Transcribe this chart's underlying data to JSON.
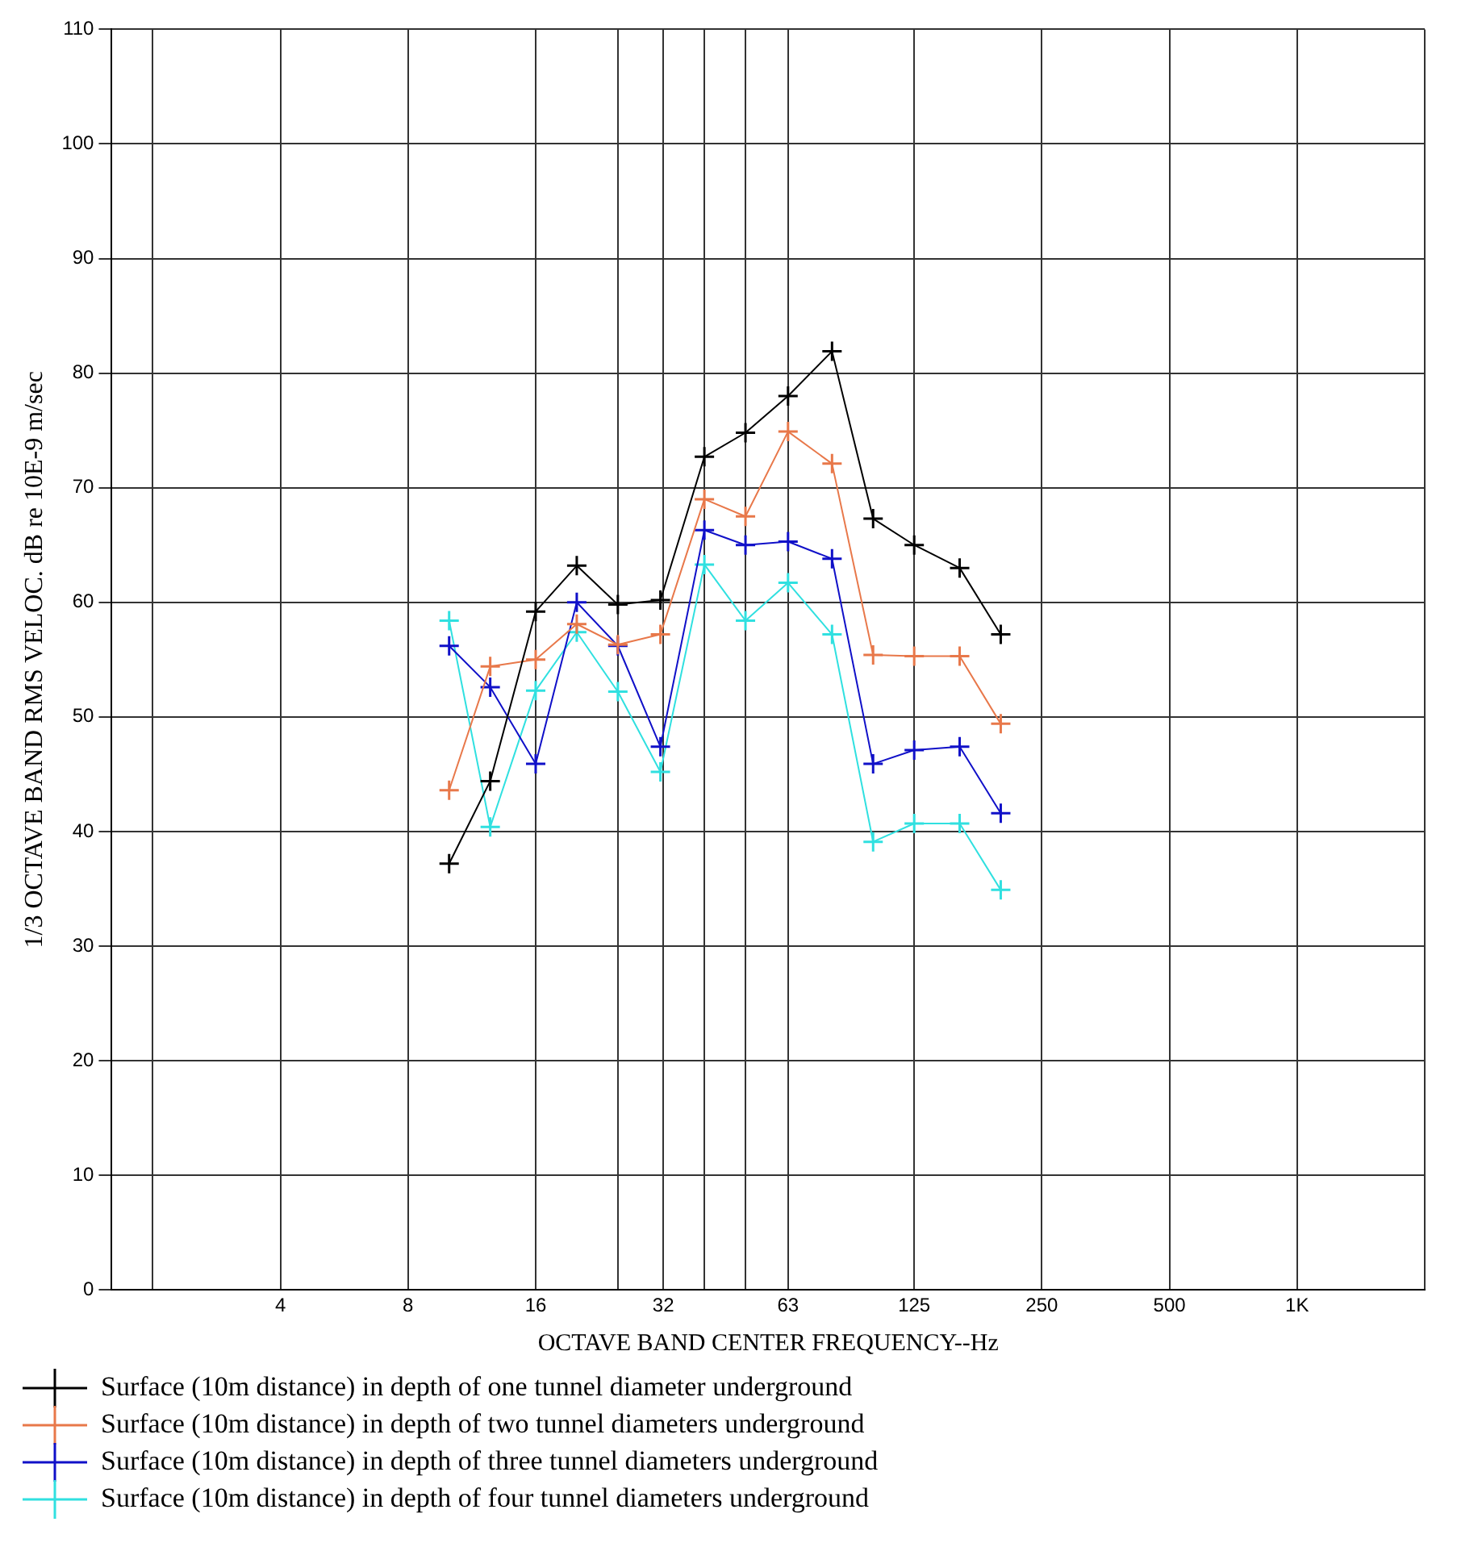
{
  "chart_data": {
    "type": "line",
    "xlabel": "OCTAVE BAND CENTER FREQUENCY--Hz",
    "ylabel": "1/3 OCTAVE BAND RMS VELOC. dB re 10E-9 m/sec",
    "x": [
      10,
      12.5,
      16,
      20,
      25,
      31.5,
      40,
      50,
      63,
      80,
      100,
      125,
      160,
      200
    ],
    "series": [
      {
        "name": "Surface (10m distance) in depth of one tunnel diameter underground",
        "color": "#000000",
        "values": [
          37.2,
          44.4,
          59.2,
          63.2,
          59.8,
          60.2,
          72.7,
          74.8,
          78,
          81.9,
          67.3,
          65,
          63,
          57.2
        ]
      },
      {
        "name": "Surface (10m distance) in depth of two tunnel diameters underground",
        "color": "#e8784a",
        "values": [
          43.6,
          54.4,
          55,
          58.1,
          56.3,
          57.2,
          69,
          67.5,
          74.9,
          72.1,
          55.4,
          55.3,
          55.3,
          49.4
        ]
      },
      {
        "name": "Surface (10m distance) in depth of three tunnel diameters underground",
        "color": "#1010c8",
        "values": [
          56.2,
          52.6,
          45.9,
          60,
          56.2,
          47.4,
          66.3,
          65,
          65.3,
          63.8,
          45.9,
          47.1,
          47.4,
          41.6
        ]
      },
      {
        "name": "Surface (10m distance) in depth of four tunnel diameters underground",
        "color": "#30e0e0",
        "values": [
          58.4,
          40.4,
          52.3,
          57.4,
          52.2,
          45.2,
          63.3,
          58.4,
          61.7,
          57.2,
          39.1,
          40.7,
          40.7,
          34.9
        ]
      }
    ],
    "log": "x",
    "xlim": [
      1.6,
      2000
    ],
    "xticks": [
      {
        "value": 2,
        "label": null
      },
      4,
      8,
      16,
      {
        "value": 25,
        "label": null
      },
      32,
      {
        "value": 40,
        "label": null
      },
      {
        "value": 50,
        "label": null
      },
      63,
      125,
      250,
      500,
      {
        "value": 1000,
        "label": "1K"
      },
      {
        "value": 2000,
        "label": null
      }
    ],
    "ylim": [
      0,
      110
    ],
    "yticks": [
      0,
      10,
      20,
      30,
      40,
      50,
      60,
      70,
      80,
      90,
      100,
      110
    ],
    "grid": true,
    "legend": "bottom",
    "marker": "cross",
    "line_style": "solid"
  }
}
